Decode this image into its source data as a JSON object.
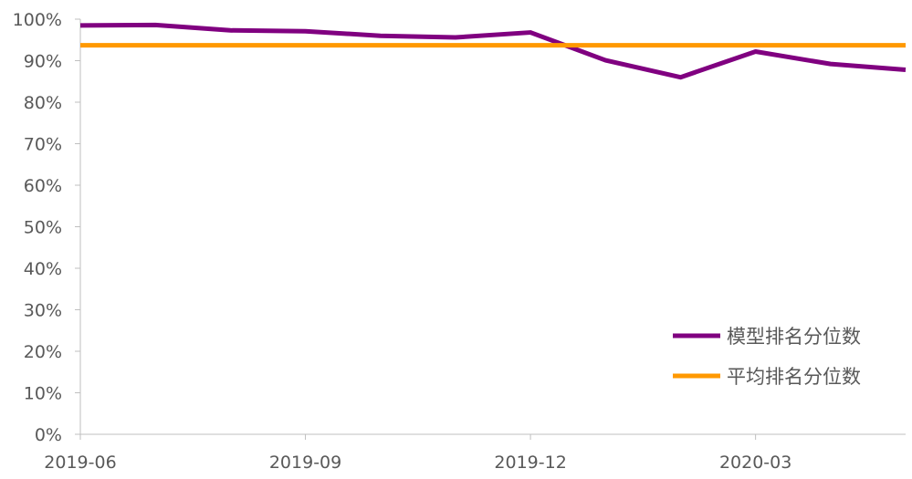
{
  "chart_data": {
    "type": "line",
    "x": [
      "2019-06",
      "2019-07",
      "2019-08",
      "2019-09",
      "2019-10",
      "2019-11",
      "2019-12",
      "2020-01",
      "2020-02",
      "2020-03",
      "2020-04",
      "2020-05"
    ],
    "x_tick_labels": [
      "2019-06",
      "2019-09",
      "2019-12",
      "2020-03"
    ],
    "y_tick_labels": [
      "0%",
      "10%",
      "20%",
      "30%",
      "40%",
      "50%",
      "60%",
      "70%",
      "80%",
      "90%",
      "100%"
    ],
    "ylim": [
      0,
      100
    ],
    "series": [
      {
        "name": "模型排名分位数",
        "color": "#800080",
        "values": [
          98.5,
          98.6,
          97.3,
          97.1,
          96.0,
          95.6,
          96.8,
          90.1,
          86.0,
          92.2,
          89.2,
          87.8
        ]
      },
      {
        "name": "平均排名分位数",
        "color": "#ff9900",
        "values": [
          93.7,
          93.7,
          93.7,
          93.7,
          93.7,
          93.7,
          93.7,
          93.7,
          93.7,
          93.7,
          93.7,
          93.7
        ]
      }
    ],
    "legend_position": "bottom-right",
    "grid": false
  }
}
